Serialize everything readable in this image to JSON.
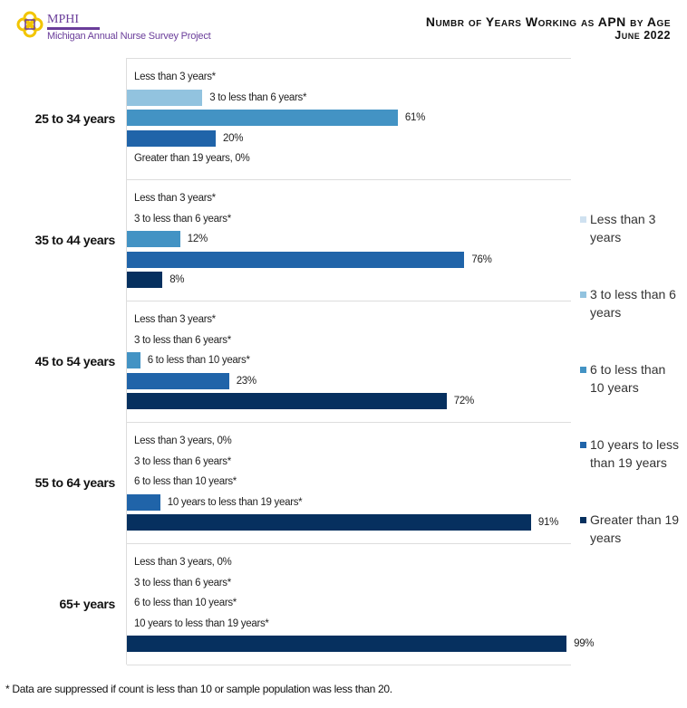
{
  "logo": {
    "name": "MPHI",
    "subtitle": "Michigan Annual Nurse Survey Project"
  },
  "header": {
    "title_line1": "Numbr of Years Working as APN  by Age",
    "title_line2": "June 2022"
  },
  "footnote": "* Data are suppressed if count is less than 10 or sample population was less than 20.",
  "chart_data": {
    "type": "bar",
    "orientation": "horizontal",
    "xlim": [
      0,
      100
    ],
    "grid": "horizontal separators between groups",
    "legend_position": "right",
    "categories": [
      "25 to 34 years",
      "35 to 44 years",
      "45 to 54 years",
      "55 to 64 years",
      "65+ years"
    ],
    "series": [
      {
        "name": "Less than 3 years",
        "color": "#cfe1f0",
        "values": [
          null,
          null,
          null,
          0,
          0
        ],
        "labels": [
          "Less than 3 years*",
          "Less than 3 years*",
          "Less than 3 years*",
          "Less than 3 years, 0%",
          "Less than 3 years, 0%"
        ]
      },
      {
        "name": "3 to less than 6 years",
        "color": "#92c3df",
        "values": [
          17,
          null,
          null,
          null,
          null
        ],
        "labels": [
          "3 to less than 6 years*",
          "3 to less than 6 years*",
          "3 to less than 6 years*",
          "3 to less than 6 years*",
          "3 to less than 6 years*"
        ]
      },
      {
        "name": "6 to less than 10 years",
        "color": "#4393c4",
        "values": [
          61,
          12,
          3,
          null,
          null
        ],
        "labels": [
          "61%",
          "12%",
          "6 to less than 10 years*",
          "6 to less than 10 years*",
          "6 to less than 10 years*"
        ]
      },
      {
        "name": "10 years to less than 19 years",
        "color": "#2064a9",
        "values": [
          20,
          76,
          23,
          7.5,
          null
        ],
        "labels": [
          "20%",
          "76%",
          "23%",
          "10 years to less than 19 years*",
          "10 years to less than 19 years*"
        ]
      },
      {
        "name": "Greater than 19 years",
        "color": "#06305f",
        "values": [
          0,
          8,
          72,
          91,
          99
        ],
        "labels": [
          "Greater than 19 years, 0%",
          "8%",
          "72%",
          "91%",
          "99%"
        ]
      }
    ]
  }
}
